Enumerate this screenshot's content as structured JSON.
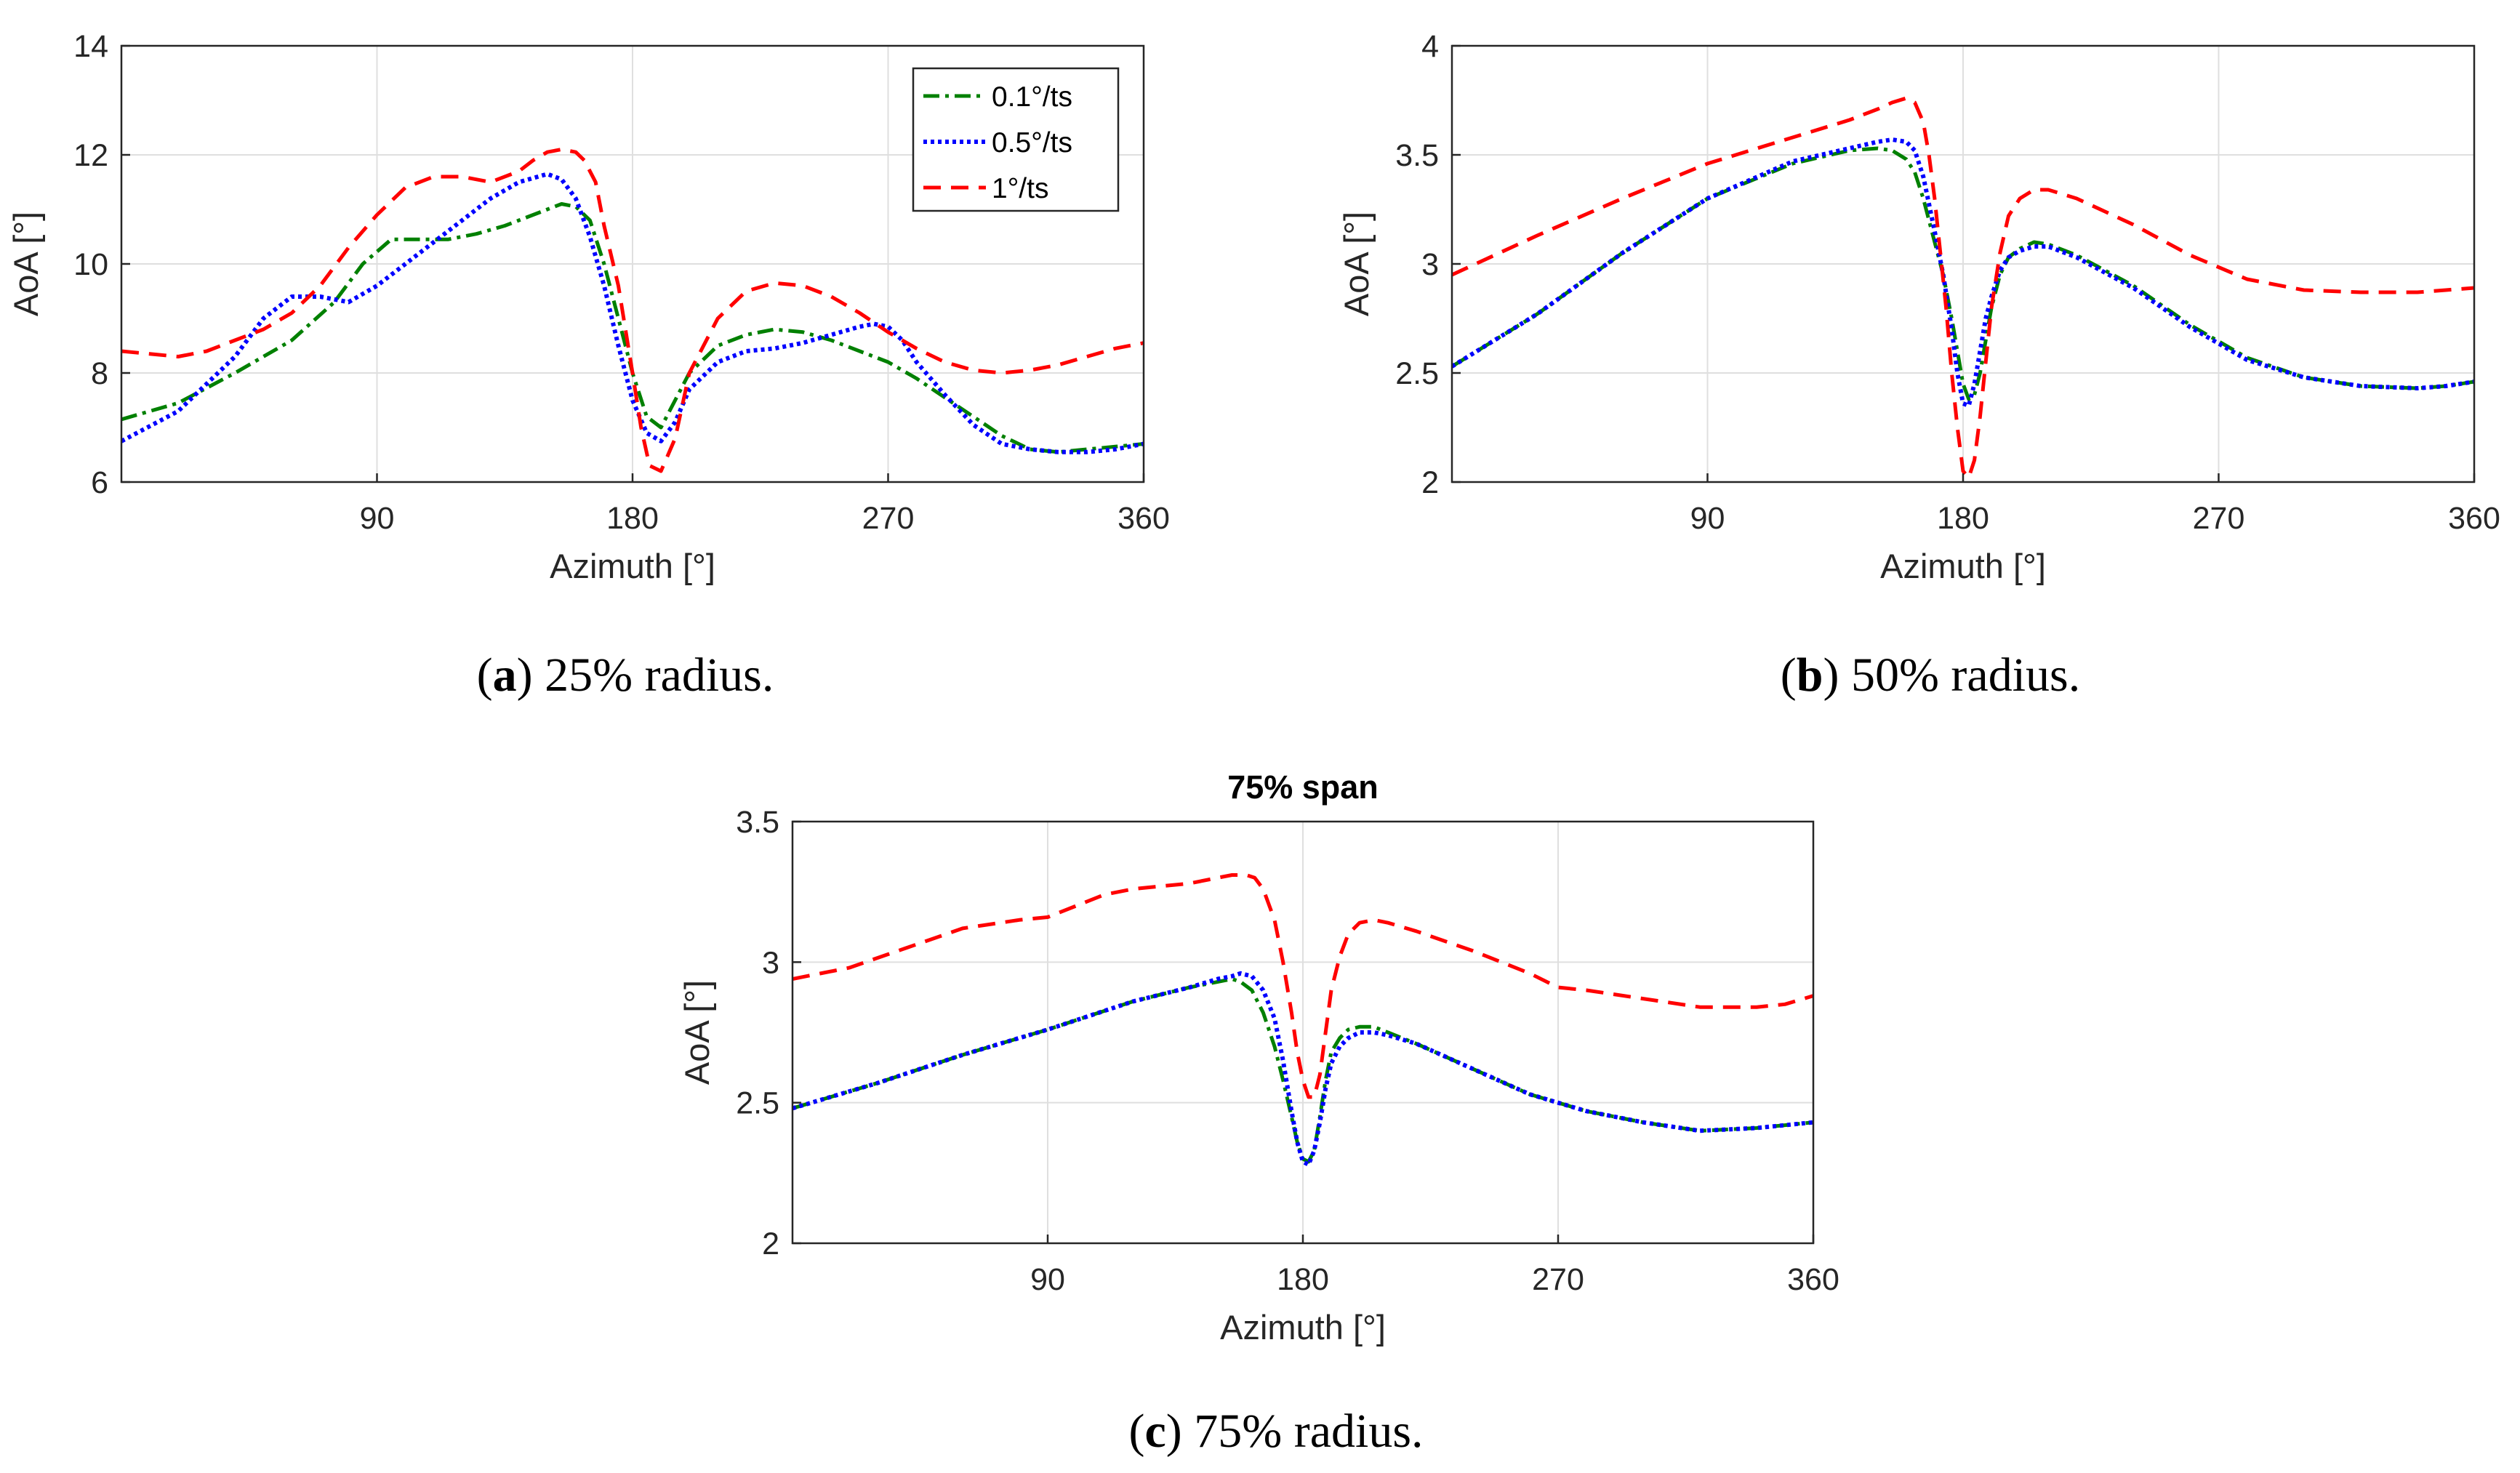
{
  "legend": [
    {
      "label": "0.1°/ts",
      "color": "#008000",
      "dash": "22,8,5,8"
    },
    {
      "label": "0.5°/ts",
      "color": "#0000ff",
      "dash": "5,5"
    },
    {
      "label": "1°/ts",
      "color": "#ff0000",
      "dash": "24,14"
    }
  ],
  "chart_data": [
    {
      "id": "a",
      "type": "line",
      "caption_label": "a",
      "caption_text": "25% radius.",
      "title": "",
      "xlabel": "Azimuth [°]",
      "ylabel": "AoA [°]",
      "xlim": [
        0,
        360
      ],
      "ylim": [
        6,
        14
      ],
      "xticks": [
        90,
        180,
        270,
        360
      ],
      "yticks": [
        6,
        8,
        10,
        12,
        14
      ],
      "grid": true,
      "legend_position": "top-right",
      "series": [
        {
          "name": "0.1°/ts",
          "x": [
            0,
            20,
            40,
            60,
            75,
            85,
            95,
            105,
            115,
            125,
            135,
            145,
            155,
            160,
            165,
            170,
            175,
            180,
            185,
            190,
            195,
            200,
            210,
            220,
            230,
            240,
            250,
            260,
            270,
            280,
            290,
            300,
            310,
            320,
            330,
            340,
            350,
            360
          ],
          "y": [
            7.15,
            7.45,
            8.0,
            8.6,
            9.3,
            10.0,
            10.45,
            10.45,
            10.45,
            10.55,
            10.7,
            10.9,
            11.1,
            11.05,
            10.8,
            10.0,
            9.0,
            8.0,
            7.2,
            7.0,
            7.5,
            8.0,
            8.5,
            8.7,
            8.8,
            8.75,
            8.6,
            8.4,
            8.2,
            7.9,
            7.55,
            7.2,
            6.85,
            6.6,
            6.55,
            6.6,
            6.65,
            6.7
          ]
        },
        {
          "name": "0.5°/ts",
          "x": [
            0,
            20,
            40,
            50,
            60,
            70,
            80,
            90,
            100,
            110,
            120,
            130,
            140,
            150,
            155,
            160,
            165,
            170,
            175,
            180,
            185,
            190,
            195,
            200,
            210,
            220,
            230,
            240,
            250,
            260,
            265,
            270,
            275,
            280,
            290,
            300,
            310,
            320,
            330,
            340,
            350,
            360
          ],
          "y": [
            6.75,
            7.3,
            8.3,
            9.0,
            9.4,
            9.4,
            9.3,
            9.6,
            10.0,
            10.4,
            10.8,
            11.2,
            11.5,
            11.65,
            11.55,
            11.2,
            10.5,
            9.6,
            8.5,
            7.5,
            6.9,
            6.75,
            7.1,
            7.7,
            8.2,
            8.4,
            8.45,
            8.55,
            8.7,
            8.85,
            8.9,
            8.85,
            8.6,
            8.2,
            7.6,
            7.05,
            6.7,
            6.6,
            6.55,
            6.55,
            6.6,
            6.7
          ]
        },
        {
          "name": "1°/ts",
          "x": [
            0,
            10,
            20,
            30,
            40,
            50,
            60,
            70,
            80,
            90,
            100,
            110,
            120,
            130,
            140,
            145,
            150,
            155,
            160,
            163,
            167,
            170,
            175,
            180,
            183,
            186,
            190,
            195,
            200,
            210,
            220,
            230,
            240,
            250,
            260,
            270,
            280,
            290,
            300,
            310,
            320,
            330,
            340,
            350,
            360
          ],
          "y": [
            8.4,
            8.35,
            8.3,
            8.4,
            8.6,
            8.8,
            9.1,
            9.6,
            10.3,
            10.9,
            11.4,
            11.6,
            11.6,
            11.5,
            11.7,
            11.9,
            12.05,
            12.1,
            12.05,
            11.9,
            11.5,
            10.7,
            9.6,
            8.0,
            7.0,
            6.3,
            6.2,
            6.8,
            8.0,
            9.0,
            9.5,
            9.65,
            9.6,
            9.4,
            9.1,
            8.75,
            8.45,
            8.2,
            8.05,
            8.0,
            8.05,
            8.15,
            8.3,
            8.45,
            8.55
          ]
        }
      ]
    },
    {
      "id": "b",
      "type": "line",
      "caption_label": "b",
      "caption_text": "50% radius.",
      "title": "",
      "xlabel": "Azimuth [°]",
      "ylabel": "AoA [°]",
      "xlim": [
        0,
        360
      ],
      "ylim": [
        2,
        4
      ],
      "xticks": [
        90,
        180,
        270,
        360
      ],
      "yticks": [
        2,
        2.5,
        3,
        3.5,
        4
      ],
      "grid": true,
      "legend_position": "none",
      "series": [
        {
          "name": "0.1°/ts",
          "x": [
            0,
            30,
            60,
            90,
            120,
            140,
            150,
            155,
            160,
            163,
            166,
            170,
            173,
            176,
            178,
            180,
            182,
            184,
            186,
            188,
            190,
            193,
            196,
            200,
            205,
            210,
            220,
            240,
            260,
            280,
            300,
            320,
            340,
            350,
            360
          ],
          "y": [
            2.53,
            2.77,
            3.05,
            3.3,
            3.46,
            3.52,
            3.53,
            3.52,
            3.48,
            3.42,
            3.3,
            3.1,
            2.95,
            2.75,
            2.6,
            2.45,
            2.38,
            2.4,
            2.5,
            2.65,
            2.8,
            2.95,
            3.03,
            3.07,
            3.1,
            3.09,
            3.04,
            2.9,
            2.72,
            2.57,
            2.48,
            2.44,
            2.43,
            2.44,
            2.46
          ]
        },
        {
          "name": "0.5°/ts",
          "x": [
            0,
            30,
            60,
            90,
            120,
            140,
            150,
            155,
            160,
            163,
            166,
            170,
            173,
            176,
            178,
            180,
            182,
            184,
            186,
            188,
            190,
            193,
            196,
            200,
            205,
            210,
            220,
            240,
            260,
            280,
            300,
            320,
            340,
            350,
            360
          ],
          "y": [
            2.53,
            2.77,
            3.05,
            3.3,
            3.47,
            3.53,
            3.56,
            3.57,
            3.56,
            3.52,
            3.4,
            3.15,
            2.95,
            2.7,
            2.5,
            2.36,
            2.35,
            2.45,
            2.6,
            2.75,
            2.85,
            2.97,
            3.03,
            3.06,
            3.08,
            3.08,
            3.03,
            2.89,
            2.71,
            2.56,
            2.48,
            2.44,
            2.43,
            2.44,
            2.46
          ]
        },
        {
          "name": "1°/ts",
          "x": [
            0,
            30,
            60,
            90,
            120,
            140,
            150,
            155,
            160,
            163,
            166,
            168,
            170,
            172,
            174,
            176,
            178,
            180,
            182,
            184,
            186,
            188,
            190,
            193,
            196,
            200,
            205,
            210,
            220,
            240,
            260,
            280,
            300,
            320,
            340,
            350,
            360
          ],
          "y": [
            2.95,
            3.13,
            3.3,
            3.46,
            3.58,
            3.66,
            3.71,
            3.74,
            3.76,
            3.74,
            3.65,
            3.5,
            3.3,
            3.05,
            2.8,
            2.5,
            2.25,
            2.05,
            2.02,
            2.1,
            2.3,
            2.55,
            2.8,
            3.05,
            3.22,
            3.3,
            3.34,
            3.34,
            3.3,
            3.18,
            3.04,
            2.93,
            2.88,
            2.87,
            2.87,
            2.88,
            2.89
          ]
        }
      ]
    },
    {
      "id": "c",
      "type": "line",
      "caption_label": "c",
      "caption_text": "75% radius.",
      "title": "75% span",
      "xlabel": "Azimuth [°]",
      "ylabel": "AoA [°]",
      "xlim": [
        0,
        360
      ],
      "ylim": [
        2,
        3.5
      ],
      "xticks": [
        90,
        180,
        270,
        360
      ],
      "yticks": [
        2,
        2.5,
        3,
        3.5
      ],
      "grid": true,
      "legend_position": "none",
      "series": [
        {
          "name": "0.1°/ts",
          "x": [
            0,
            30,
            60,
            90,
            120,
            140,
            150,
            155,
            158,
            162,
            166,
            170,
            173,
            176,
            178,
            180,
            182,
            184,
            186,
            188,
            190,
            193,
            196,
            200,
            205,
            210,
            220,
            240,
            260,
            270,
            280,
            300,
            320,
            340,
            350,
            360
          ],
          "y": [
            2.48,
            2.57,
            2.67,
            2.76,
            2.86,
            2.91,
            2.93,
            2.94,
            2.93,
            2.9,
            2.82,
            2.7,
            2.58,
            2.45,
            2.36,
            2.3,
            2.29,
            2.33,
            2.45,
            2.58,
            2.68,
            2.73,
            2.76,
            2.77,
            2.77,
            2.75,
            2.71,
            2.62,
            2.53,
            2.5,
            2.47,
            2.43,
            2.4,
            2.41,
            2.42,
            2.43
          ]
        },
        {
          "name": "0.5°/ts",
          "x": [
            0,
            30,
            60,
            90,
            120,
            140,
            150,
            155,
            158,
            162,
            166,
            170,
            173,
            176,
            178,
            180,
            182,
            184,
            186,
            188,
            190,
            193,
            196,
            200,
            205,
            210,
            220,
            240,
            260,
            270,
            280,
            300,
            320,
            340,
            350,
            360
          ],
          "y": [
            2.48,
            2.57,
            2.67,
            2.76,
            2.86,
            2.91,
            2.94,
            2.95,
            2.96,
            2.95,
            2.9,
            2.8,
            2.65,
            2.47,
            2.36,
            2.29,
            2.28,
            2.33,
            2.43,
            2.55,
            2.64,
            2.7,
            2.73,
            2.75,
            2.75,
            2.74,
            2.71,
            2.62,
            2.53,
            2.5,
            2.47,
            2.43,
            2.4,
            2.41,
            2.42,
            2.43
          ]
        },
        {
          "name": "1°/ts",
          "x": [
            0,
            20,
            40,
            60,
            80,
            90,
            100,
            110,
            120,
            130,
            140,
            150,
            155,
            160,
            163,
            166,
            170,
            173,
            176,
            178,
            180,
            182,
            184,
            186,
            188,
            190,
            193,
            196,
            200,
            205,
            210,
            220,
            240,
            260,
            270,
            280,
            300,
            320,
            340,
            350,
            360
          ],
          "y": [
            2.94,
            2.98,
            3.05,
            3.12,
            3.15,
            3.16,
            3.2,
            3.24,
            3.26,
            3.27,
            3.28,
            3.3,
            3.31,
            3.31,
            3.3,
            3.26,
            3.15,
            3.0,
            2.82,
            2.68,
            2.58,
            2.52,
            2.52,
            2.6,
            2.75,
            2.9,
            3.02,
            3.1,
            3.14,
            3.15,
            3.14,
            3.11,
            3.04,
            2.96,
            2.91,
            2.9,
            2.87,
            2.84,
            2.84,
            2.85,
            2.88
          ]
        }
      ]
    }
  ]
}
